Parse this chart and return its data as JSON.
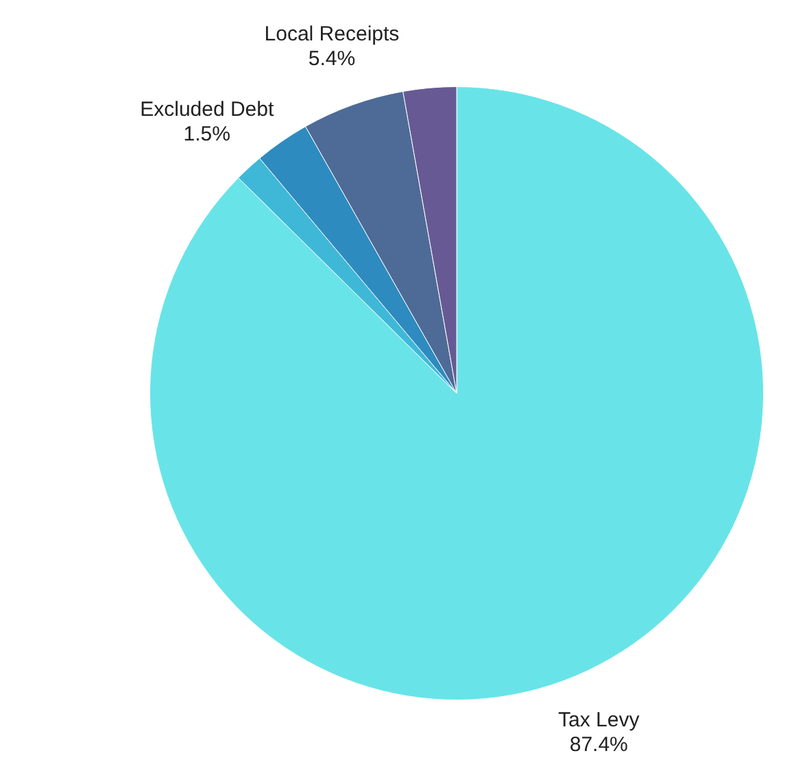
{
  "chart_data": {
    "type": "pie",
    "categories": [
      "Tax Levy",
      "Excluded Debt",
      null,
      "Local Receipts",
      null
    ],
    "values": [
      87.4,
      1.5,
      2.9,
      5.4,
      2.8
    ],
    "colors": [
      "#68e4e8",
      "#3fb8d8",
      "#2e8bbf",
      "#4d6b96",
      "#675a94"
    ],
    "value_labels": [
      "87.4%",
      "1.5%",
      null,
      "5.4%",
      null
    ],
    "legend": false
  }
}
